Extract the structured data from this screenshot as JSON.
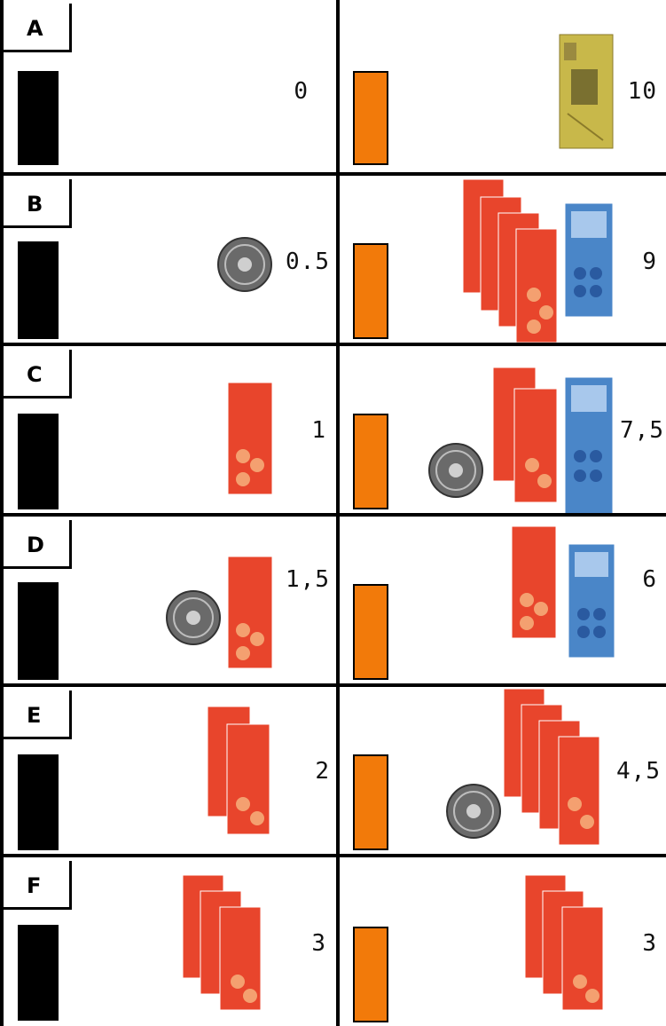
{
  "rows": [
    {
      "label": "A",
      "left": {
        "amount": "0"
      },
      "right": {
        "amount": "10"
      }
    },
    {
      "label": "B",
      "left": {
        "amount": "0.5"
      },
      "right": {
        "amount": "9"
      }
    },
    {
      "label": "C",
      "left": {
        "amount": "1"
      },
      "right": {
        "amount": "7,5"
      }
    },
    {
      "label": "D",
      "left": {
        "amount": "1,5"
      },
      "right": {
        "amount": "6"
      }
    },
    {
      "label": "E",
      "left": {
        "amount": "2"
      },
      "right": {
        "amount": "4,5"
      }
    },
    {
      "label": "F",
      "left": {
        "amount": "3"
      },
      "right": {
        "amount": "3"
      }
    }
  ],
  "colors": {
    "left_bar": "#000000",
    "right_bar": "#f27a0a",
    "red_note": "#e8452c",
    "blue_note": "#4a86c8",
    "gold_note": "#c8b84a",
    "coin": "#6a6a6a"
  },
  "icons": {
    "coin": "coin-icon",
    "red_note": "banknote-red-icon",
    "blue_note": "banknote-blue-icon",
    "gold_note": "banknote-gold-icon"
  }
}
